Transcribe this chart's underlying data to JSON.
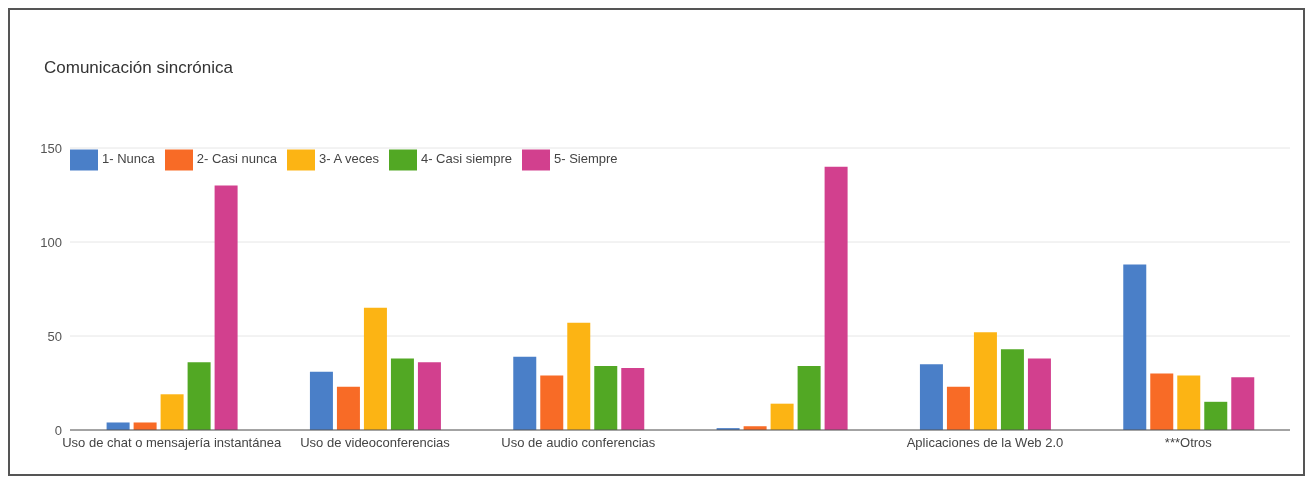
{
  "chart_data": {
    "type": "bar",
    "title": "Comunicación sincrónica",
    "categories": [
      "Uso de chat o mensajería instantánea",
      "Uso de videoconferencias",
      "Uso de audio conferencias",
      null,
      "Aplicaciones de la Web 2.0",
      "***Otros"
    ],
    "series": [
      {
        "name": "1- Nunca",
        "color": "#4a7fc8",
        "values": [
          4,
          31,
          39,
          1,
          35,
          88
        ]
      },
      {
        "name": "2- Casi nunca",
        "color": "#f86b26",
        "values": [
          4,
          23,
          29,
          2,
          23,
          30
        ]
      },
      {
        "name": "3- A veces",
        "color": "#fcb414",
        "values": [
          19,
          65,
          57,
          14,
          52,
          29
        ]
      },
      {
        "name": "4- Casi siempre",
        "color": "#52a824",
        "values": [
          36,
          38,
          34,
          34,
          43,
          15
        ]
      },
      {
        "name": "5- Siempre",
        "color": "#d2408e",
        "values": [
          130,
          36,
          33,
          140,
          38,
          28
        ]
      }
    ],
    "ylim": [
      0,
      150
    ],
    "yticks": [
      0,
      50,
      100,
      150
    ],
    "grid": "y",
    "legend": "top left"
  }
}
